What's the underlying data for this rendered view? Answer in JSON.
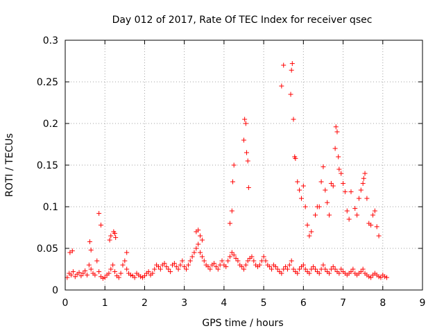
{
  "chart_data": {
    "type": "scatter",
    "title": "Day 012 of 2017, Rate Of TEC Index for receiver qsec",
    "xlabel": "GPS time / hours",
    "ylabel": "ROTI / TECUs",
    "xlim": [
      0,
      9
    ],
    "ylim": [
      0,
      0.3
    ],
    "xticks": [
      "0",
      "1",
      "2",
      "3",
      "4",
      "5",
      "6",
      "7",
      "8",
      "9"
    ],
    "yticks": [
      "0",
      "0.05",
      "0.1",
      "0.15",
      "0.2",
      "0.25",
      "0.3"
    ],
    "grid": true,
    "marker": "+",
    "color": "#ff0000",
    "series": [
      {
        "x": [
          0.05,
          0.1,
          0.15,
          0.2,
          0.25,
          0.3,
          0.35,
          0.4,
          0.45,
          0.5,
          0.55,
          0.6,
          0.65,
          0.7,
          0.75,
          0.8,
          0.85,
          0.9,
          0.95,
          1.0,
          1.05,
          1.1,
          1.15,
          1.2,
          1.25,
          1.3,
          1.35,
          1.4,
          1.45,
          1.5,
          1.55,
          1.6,
          1.65,
          1.7,
          1.75,
          1.8,
          1.85,
          1.9,
          1.95,
          2.0,
          2.05,
          2.1,
          2.15,
          2.2,
          2.25,
          2.3,
          2.35,
          2.4,
          2.45,
          2.5,
          2.55,
          2.6,
          2.65,
          2.7,
          2.75,
          2.8,
          2.85,
          2.9,
          2.95,
          3.0,
          3.05,
          3.1,
          3.15,
          3.2,
          3.25,
          3.3,
          3.35,
          3.4,
          3.45,
          3.5,
          3.55,
          3.6,
          3.65,
          3.7,
          3.75,
          3.8,
          3.85,
          3.9,
          3.95,
          4.0,
          4.05,
          4.1,
          4.15,
          4.2,
          4.25,
          4.3,
          4.35,
          4.4,
          4.45,
          4.5,
          4.55,
          4.6,
          4.65,
          4.7,
          4.75,
          4.8,
          4.85,
          4.9,
          4.95,
          5.0,
          5.05,
          5.1,
          5.15,
          5.2,
          5.25,
          5.3,
          5.35,
          5.4,
          5.45,
          5.5,
          5.55,
          5.6,
          5.65,
          5.7,
          5.75,
          5.8,
          5.85,
          5.9,
          5.95,
          6.0,
          6.05,
          6.1,
          6.15,
          6.2,
          6.25,
          6.3,
          6.35,
          6.4,
          6.45,
          6.5,
          6.55,
          6.6,
          6.65,
          6.7,
          6.75,
          6.8,
          6.85,
          6.9,
          6.95,
          7.0,
          7.05,
          7.1,
          7.15,
          7.2,
          7.25,
          7.3,
          7.35,
          7.4,
          7.45,
          7.5,
          7.55,
          7.6,
          7.65,
          7.7,
          7.75,
          7.8,
          7.85,
          7.9,
          7.95,
          8.0,
          8.05,
          8.1,
          0.12,
          0.18,
          0.62,
          0.65,
          0.85,
          0.9,
          1.12,
          1.15,
          1.22,
          1.25,
          1.27,
          1.55,
          3.3,
          3.35,
          3.4,
          3.45,
          4.15,
          4.2,
          4.22,
          4.25,
          4.5,
          4.52,
          4.55,
          4.57,
          4.6,
          4.62,
          5.45,
          5.5,
          5.68,
          5.7,
          5.72,
          5.75,
          5.78,
          5.8,
          5.85,
          5.9,
          5.95,
          6.0,
          6.05,
          6.1,
          6.15,
          6.2,
          6.3,
          6.35,
          6.4,
          6.45,
          6.5,
          6.55,
          6.6,
          6.65,
          6.7,
          6.75,
          6.8,
          6.82,
          6.85,
          6.88,
          6.9,
          6.95,
          7.0,
          7.05,
          7.1,
          7.15,
          7.2,
          7.3,
          7.35,
          7.4,
          7.45,
          7.5,
          7.52,
          7.55,
          7.6,
          7.65,
          7.7,
          7.75,
          7.8,
          7.85,
          7.9
        ],
        "y": [
          0.015,
          0.02,
          0.018,
          0.022,
          0.016,
          0.019,
          0.021,
          0.017,
          0.02,
          0.023,
          0.018,
          0.03,
          0.025,
          0.02,
          0.018,
          0.035,
          0.022,
          0.016,
          0.014,
          0.015,
          0.018,
          0.02,
          0.025,
          0.03,
          0.022,
          0.017,
          0.015,
          0.02,
          0.03,
          0.035,
          0.025,
          0.02,
          0.018,
          0.017,
          0.015,
          0.02,
          0.018,
          0.016,
          0.015,
          0.017,
          0.02,
          0.022,
          0.018,
          0.02,
          0.025,
          0.03,
          0.028,
          0.025,
          0.03,
          0.032,
          0.028,
          0.025,
          0.022,
          0.03,
          0.032,
          0.028,
          0.025,
          0.03,
          0.035,
          0.028,
          0.025,
          0.03,
          0.035,
          0.04,
          0.045,
          0.05,
          0.055,
          0.045,
          0.04,
          0.035,
          0.03,
          0.028,
          0.025,
          0.03,
          0.032,
          0.028,
          0.025,
          0.03,
          0.035,
          0.03,
          0.028,
          0.035,
          0.04,
          0.045,
          0.042,
          0.038,
          0.035,
          0.03,
          0.028,
          0.025,
          0.03,
          0.035,
          0.038,
          0.04,
          0.035,
          0.03,
          0.028,
          0.03,
          0.035,
          0.04,
          0.035,
          0.03,
          0.028,
          0.025,
          0.03,
          0.028,
          0.025,
          0.022,
          0.02,
          0.025,
          0.028,
          0.025,
          0.03,
          0.035,
          0.025,
          0.022,
          0.02,
          0.025,
          0.028,
          0.03,
          0.025,
          0.022,
          0.02,
          0.025,
          0.028,
          0.025,
          0.022,
          0.02,
          0.025,
          0.03,
          0.025,
          0.022,
          0.02,
          0.025,
          0.028,
          0.025,
          0.022,
          0.02,
          0.025,
          0.022,
          0.02,
          0.018,
          0.02,
          0.022,
          0.025,
          0.02,
          0.018,
          0.02,
          0.022,
          0.025,
          0.02,
          0.018,
          0.016,
          0.015,
          0.018,
          0.02,
          0.018,
          0.016,
          0.015,
          0.018,
          0.016,
          0.015,
          0.045,
          0.047,
          0.058,
          0.048,
          0.092,
          0.078,
          0.06,
          0.065,
          0.07,
          0.068,
          0.063,
          0.045,
          0.07,
          0.072,
          0.065,
          0.06,
          0.08,
          0.095,
          0.13,
          0.15,
          0.18,
          0.205,
          0.2,
          0.165,
          0.155,
          0.123,
          0.245,
          0.27,
          0.235,
          0.264,
          0.272,
          0.205,
          0.16,
          0.158,
          0.13,
          0.12,
          0.11,
          0.125,
          0.1,
          0.078,
          0.065,
          0.07,
          0.09,
          0.1,
          0.1,
          0.13,
          0.148,
          0.12,
          0.105,
          0.09,
          0.128,
          0.125,
          0.17,
          0.196,
          0.19,
          0.16,
          0.145,
          0.14,
          0.128,
          0.118,
          0.095,
          0.085,
          0.118,
          0.098,
          0.09,
          0.11,
          0.12,
          0.128,
          0.134,
          0.14,
          0.11,
          0.08,
          0.078,
          0.09,
          0.095,
          0.076,
          0.065
        ]
      }
    ]
  }
}
